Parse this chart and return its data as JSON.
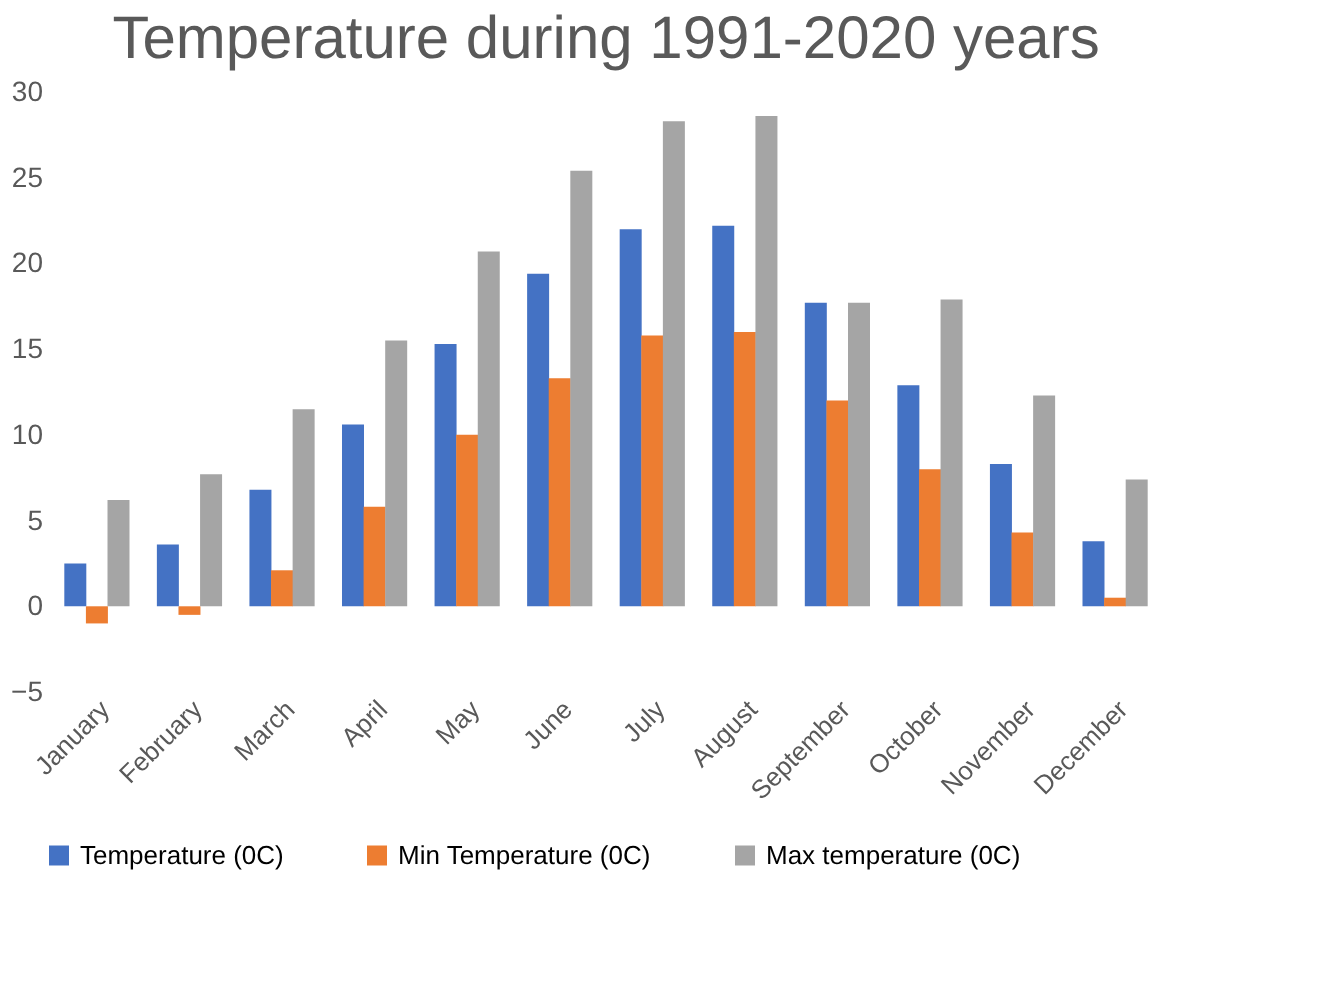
{
  "chart_data": {
    "type": "bar",
    "title": "Temperature during 1991-2020 years",
    "categories": [
      "January",
      "February",
      "March",
      "April",
      "May",
      "June",
      "July",
      "August",
      "September",
      "October",
      "November",
      "December"
    ],
    "series": [
      {
        "name": "Temperature (0C)",
        "color": "#4472c4",
        "values": [
          2.5,
          3.6,
          6.8,
          10.6,
          15.3,
          19.4,
          22,
          22.2,
          17.7,
          12.9,
          8.3,
          3.8
        ]
      },
      {
        "name": "Min Temperature (0C)",
        "color": "#ed7d31",
        "values": [
          -1,
          -0.5,
          2.1,
          5.8,
          10,
          13.3,
          15.8,
          16,
          12,
          8,
          4.3,
          0.5
        ]
      },
      {
        "name": "Max temperature (0C)",
        "color": "#a5a5a5",
        "values": [
          6.2,
          7.7,
          11.5,
          15.5,
          20.7,
          25.4,
          28.3,
          28.6,
          17.7,
          17.9,
          12.3,
          7.4
        ]
      }
    ],
    "ylim": [
      -5,
      30
    ],
    "yticks": [
      -5,
      0,
      5,
      10,
      15,
      20,
      25,
      30
    ],
    "grid": false,
    "legend": "bottom"
  }
}
